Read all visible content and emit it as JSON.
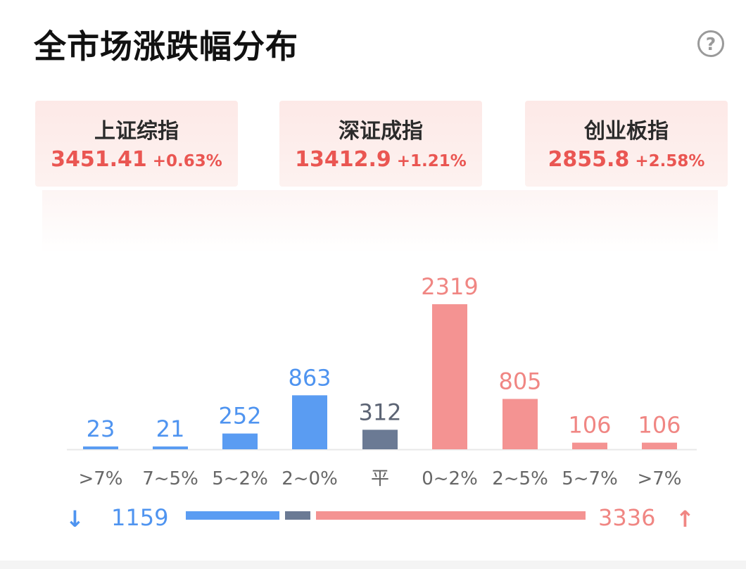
{
  "header": {
    "title": "全市场涨跌幅分布",
    "help_icon": "question-circle-icon"
  },
  "indices": [
    {
      "name": "上证综指",
      "value": "3451.41",
      "change": "+0.63%"
    },
    {
      "name": "深证成指",
      "value": "13412.9",
      "change": "+1.21%"
    },
    {
      "name": "创业板指",
      "value": "2855.8",
      "change": "+2.58%"
    }
  ],
  "colors": {
    "down": "#5a9cf2",
    "flat": "#6b7a94",
    "up": "#f49392",
    "down_text": "#4f94f0",
    "flat_text": "#5c6474",
    "up_text": "#f08683"
  },
  "chart_data": {
    "type": "bar",
    "categories": [
      ">7%",
      "7~5%",
      "5~2%",
      "2~0%",
      "平",
      "0~2%",
      "2~5%",
      "5~7%",
      ">7%"
    ],
    "values": [
      23,
      21,
      252,
      863,
      312,
      2319,
      805,
      106,
      106
    ],
    "direction": [
      "down",
      "down",
      "down",
      "down",
      "flat",
      "up",
      "up",
      "up",
      "up"
    ],
    "grid": false,
    "legend": "none"
  },
  "summary": {
    "down_arrow_icon": "arrow-down-icon",
    "up_arrow_icon": "arrow-up-icon",
    "down_total": "1159",
    "up_total": "3336",
    "flat_total": 312
  }
}
